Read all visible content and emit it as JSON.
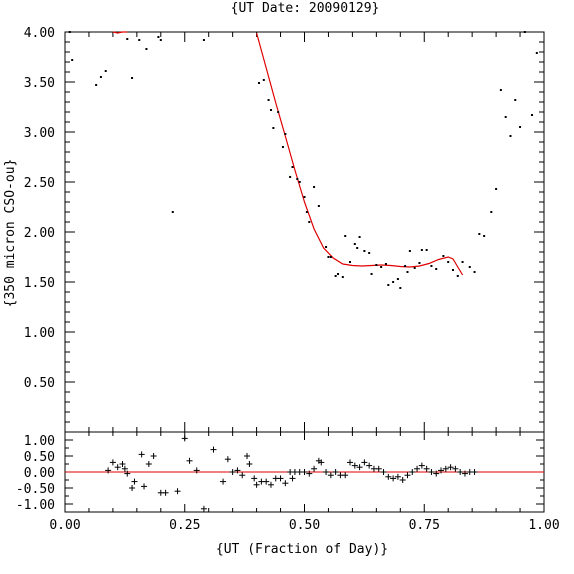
{
  "chart_data": [
    {
      "type": "scatter",
      "title": "{UT Date: 20090129}",
      "ylabel": "{350 micron CSO-ou}",
      "xlim": [
        0.0,
        1.0
      ],
      "ylim": [
        0.0,
        4.0
      ],
      "yticks": [
        "0.50",
        "1.00",
        "1.50",
        "2.00",
        "2.50",
        "3.00",
        "3.50",
        "4.00"
      ],
      "ytick_values": [
        0.5,
        1.0,
        1.5,
        2.0,
        2.5,
        3.0,
        3.5,
        4.0
      ],
      "grid": false,
      "points": [
        [
          0.01,
          4.02
        ],
        [
          0.015,
          3.72
        ],
        [
          0.065,
          3.47
        ],
        [
          0.075,
          3.55
        ],
        [
          0.085,
          3.61
        ],
        [
          0.13,
          3.93
        ],
        [
          0.14,
          3.54
        ],
        [
          0.155,
          3.92
        ],
        [
          0.17,
          3.83
        ],
        [
          0.195,
          3.95
        ],
        [
          0.2,
          3.92
        ],
        [
          0.225,
          2.2
        ],
        [
          0.29,
          3.92
        ],
        [
          0.405,
          3.49
        ],
        [
          0.415,
          3.52
        ],
        [
          0.425,
          3.32
        ],
        [
          0.43,
          3.22
        ],
        [
          0.435,
          3.04
        ],
        [
          0.445,
          3.2
        ],
        [
          0.455,
          2.85
        ],
        [
          0.46,
          2.98
        ],
        [
          0.47,
          2.55
        ],
        [
          0.475,
          2.65
        ],
        [
          0.485,
          2.53
        ],
        [
          0.49,
          2.5
        ],
        [
          0.5,
          2.35
        ],
        [
          0.505,
          2.2
        ],
        [
          0.51,
          2.1
        ],
        [
          0.52,
          2.45
        ],
        [
          0.53,
          2.26
        ],
        [
          0.545,
          1.85
        ],
        [
          0.55,
          1.75
        ],
        [
          0.555,
          1.75
        ],
        [
          0.565,
          1.56
        ],
        [
          0.57,
          1.58
        ],
        [
          0.58,
          1.55
        ],
        [
          0.585,
          1.96
        ],
        [
          0.595,
          1.7
        ],
        [
          0.605,
          1.88
        ],
        [
          0.61,
          1.84
        ],
        [
          0.615,
          1.95
        ],
        [
          0.625,
          1.81
        ],
        [
          0.635,
          1.79
        ],
        [
          0.64,
          1.58
        ],
        [
          0.65,
          1.67
        ],
        [
          0.66,
          1.65
        ],
        [
          0.67,
          1.68
        ],
        [
          0.675,
          1.47
        ],
        [
          0.685,
          1.5
        ],
        [
          0.695,
          1.53
        ],
        [
          0.7,
          1.44
        ],
        [
          0.71,
          1.66
        ],
        [
          0.715,
          1.6
        ],
        [
          0.72,
          1.81
        ],
        [
          0.73,
          1.64
        ],
        [
          0.74,
          1.69
        ],
        [
          0.745,
          1.82
        ],
        [
          0.755,
          1.82
        ],
        [
          0.765,
          1.66
        ],
        [
          0.775,
          1.63
        ],
        [
          0.79,
          1.76
        ],
        [
          0.8,
          1.7
        ],
        [
          0.81,
          1.62
        ],
        [
          0.82,
          1.56
        ],
        [
          0.83,
          1.7
        ],
        [
          0.845,
          1.65
        ],
        [
          0.855,
          1.6
        ],
        [
          0.865,
          1.98
        ],
        [
          0.875,
          1.96
        ],
        [
          0.89,
          2.2
        ],
        [
          0.9,
          2.43
        ],
        [
          0.91,
          3.42
        ],
        [
          0.92,
          3.15
        ],
        [
          0.93,
          2.96
        ],
        [
          0.94,
          3.32
        ],
        [
          0.95,
          3.05
        ],
        [
          0.96,
          4.01
        ],
        [
          0.975,
          3.17
        ],
        [
          0.985,
          3.79
        ]
      ],
      "fit_curve": [
        [
          0.1,
          4.03
        ],
        [
          0.11,
          3.99
        ],
        [
          0.12,
          4.0
        ],
        [
          0.13,
          4.03
        ],
        [
          0.4,
          3.99
        ],
        [
          0.42,
          3.64
        ],
        [
          0.44,
          3.29
        ],
        [
          0.46,
          2.96
        ],
        [
          0.48,
          2.62
        ],
        [
          0.5,
          2.3
        ],
        [
          0.52,
          2.03
        ],
        [
          0.54,
          1.84
        ],
        [
          0.56,
          1.74
        ],
        [
          0.58,
          1.68
        ],
        [
          0.6,
          1.665
        ],
        [
          0.62,
          1.66
        ],
        [
          0.64,
          1.665
        ],
        [
          0.66,
          1.67
        ],
        [
          0.68,
          1.665
        ],
        [
          0.7,
          1.655
        ],
        [
          0.72,
          1.65
        ],
        [
          0.74,
          1.66
        ],
        [
          0.76,
          1.685
        ],
        [
          0.78,
          1.725
        ],
        [
          0.8,
          1.75
        ],
        [
          0.81,
          1.73
        ],
        [
          0.82,
          1.65
        ],
        [
          0.83,
          1.57
        ]
      ]
    },
    {
      "type": "scatter",
      "xlabel": "{UT (Fraction of Day)}",
      "xlim": [
        0.0,
        1.0
      ],
      "xticks": [
        "0.00",
        "0.25",
        "0.50",
        "0.75",
        "1.00"
      ],
      "xtick_values": [
        0.0,
        0.25,
        0.5,
        0.75,
        1.0
      ],
      "ylim": [
        -1.25,
        1.25
      ],
      "yticks": [
        "1.00",
        "0.50",
        "0.00",
        "-0.50",
        "-1.00"
      ],
      "ytick_values": [
        1.0,
        0.5,
        0.0,
        -0.5,
        -1.0
      ],
      "zero_line": 0.0,
      "residuals": [
        [
          0.09,
          0.05
        ],
        [
          0.1,
          0.3
        ],
        [
          0.11,
          0.15
        ],
        [
          0.12,
          0.25
        ],
        [
          0.125,
          0.1
        ],
        [
          0.13,
          -0.05
        ],
        [
          0.14,
          -0.5
        ],
        [
          0.145,
          -0.3
        ],
        [
          0.16,
          0.55
        ],
        [
          0.165,
          -0.45
        ],
        [
          0.175,
          0.25
        ],
        [
          0.185,
          0.5
        ],
        [
          0.2,
          -0.65
        ],
        [
          0.21,
          -0.65
        ],
        [
          0.235,
          -0.6
        ],
        [
          0.25,
          1.05
        ],
        [
          0.26,
          0.35
        ],
        [
          0.275,
          0.05
        ],
        [
          0.29,
          -1.15
        ],
        [
          0.31,
          0.7
        ],
        [
          0.33,
          -0.3
        ],
        [
          0.34,
          0.4
        ],
        [
          0.35,
          0.0
        ],
        [
          0.36,
          0.05
        ],
        [
          0.37,
          -0.1
        ],
        [
          0.38,
          0.5
        ],
        [
          0.385,
          0.25
        ],
        [
          0.395,
          -0.2
        ],
        [
          0.4,
          -0.4
        ],
        [
          0.41,
          -0.3
        ],
        [
          0.42,
          -0.3
        ],
        [
          0.43,
          -0.4
        ],
        [
          0.44,
          -0.2
        ],
        [
          0.45,
          -0.2
        ],
        [
          0.46,
          -0.35
        ],
        [
          0.47,
          0.0
        ],
        [
          0.475,
          -0.2
        ],
        [
          0.48,
          0.0
        ],
        [
          0.49,
          0.0
        ],
        [
          0.5,
          0.0
        ],
        [
          0.51,
          -0.05
        ],
        [
          0.52,
          0.1
        ],
        [
          0.53,
          0.35
        ],
        [
          0.535,
          0.3
        ],
        [
          0.545,
          0.0
        ],
        [
          0.555,
          -0.1
        ],
        [
          0.565,
          0.0
        ],
        [
          0.575,
          -0.1
        ],
        [
          0.585,
          -0.1
        ],
        [
          0.595,
          0.3
        ],
        [
          0.605,
          0.2
        ],
        [
          0.615,
          0.15
        ],
        [
          0.625,
          0.3
        ],
        [
          0.635,
          0.2
        ],
        [
          0.645,
          0.1
        ],
        [
          0.655,
          0.1
        ],
        [
          0.665,
          0.0
        ],
        [
          0.675,
          -0.15
        ],
        [
          0.685,
          -0.2
        ],
        [
          0.695,
          -0.15
        ],
        [
          0.705,
          -0.25
        ],
        [
          0.715,
          -0.1
        ],
        [
          0.725,
          0.0
        ],
        [
          0.735,
          0.1
        ],
        [
          0.745,
          0.2
        ],
        [
          0.755,
          0.1
        ],
        [
          0.765,
          0.0
        ],
        [
          0.775,
          -0.05
        ],
        [
          0.785,
          0.05
        ],
        [
          0.795,
          0.1
        ],
        [
          0.805,
          0.15
        ],
        [
          0.815,
          0.1
        ],
        [
          0.825,
          0.0
        ],
        [
          0.835,
          -0.05
        ],
        [
          0.845,
          0.0
        ],
        [
          0.855,
          0.0
        ]
      ]
    }
  ]
}
